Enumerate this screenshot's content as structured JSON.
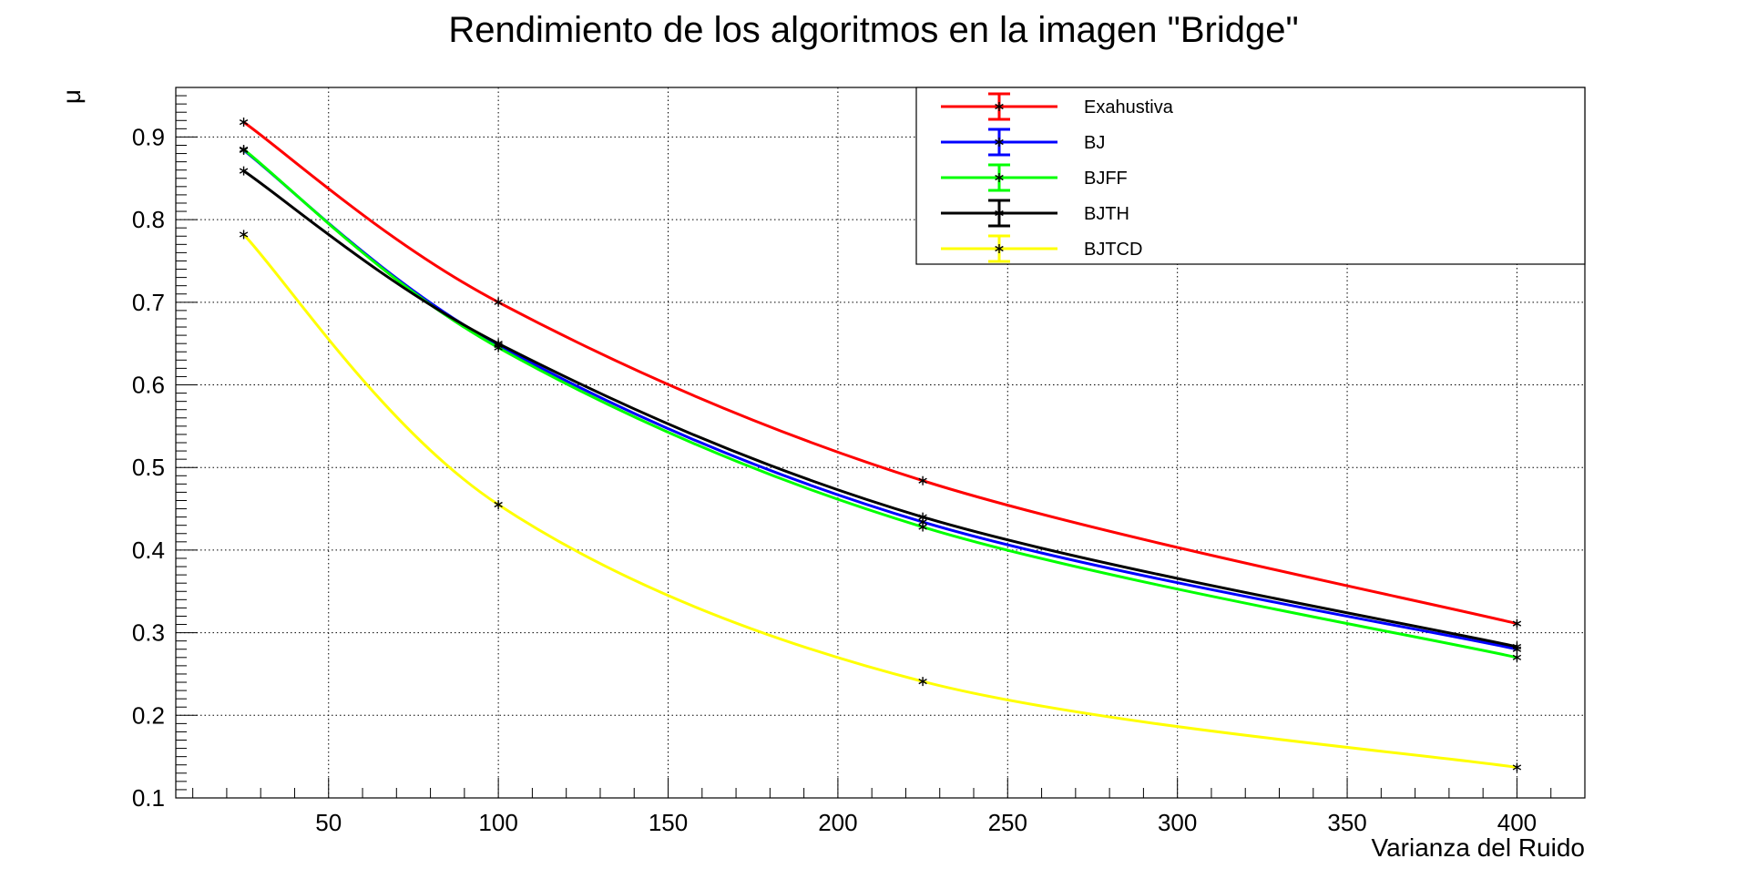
{
  "chart_data": {
    "type": "line",
    "title": "Rendimiento de los algoritmos en la imagen \"Bridge\"",
    "xlabel": "Varianza del Ruido",
    "ylabel": "μ",
    "xlim": [
      5,
      420
    ],
    "ylim": [
      0.1,
      0.96
    ],
    "x_ticks": [
      50,
      100,
      150,
      200,
      250,
      300,
      350,
      400
    ],
    "x_tick_labels": [
      "50",
      "100",
      "150",
      "200",
      "250",
      "300",
      "350",
      "400"
    ],
    "y_ticks": [
      0.1,
      0.2,
      0.3,
      0.4,
      0.5,
      0.6,
      0.7,
      0.8,
      0.9
    ],
    "y_tick_labels": [
      "0.1",
      "0.2",
      "0.3",
      "0.4",
      "0.5",
      "0.6",
      "0.7",
      "0.8",
      "0.9"
    ],
    "grid": true,
    "legend_position": "top-right",
    "x": [
      25,
      100,
      225,
      400
    ],
    "series": [
      {
        "name": "Exahustiva",
        "color": "#ff0000",
        "values": [
          0.918,
          0.7,
          0.484,
          0.311
        ]
      },
      {
        "name": "BJ",
        "color": "#0000ff",
        "values": [
          0.884,
          0.648,
          0.434,
          0.28
        ]
      },
      {
        "name": "BJFF",
        "color": "#00ff00",
        "values": [
          0.885,
          0.645,
          0.428,
          0.27
        ]
      },
      {
        "name": "BJTH",
        "color": "#000000",
        "values": [
          0.859,
          0.65,
          0.44,
          0.283
        ]
      },
      {
        "name": "BJTCD",
        "color": "#ffff00",
        "values": [
          0.782,
          0.455,
          0.241,
          0.137
        ]
      }
    ]
  }
}
